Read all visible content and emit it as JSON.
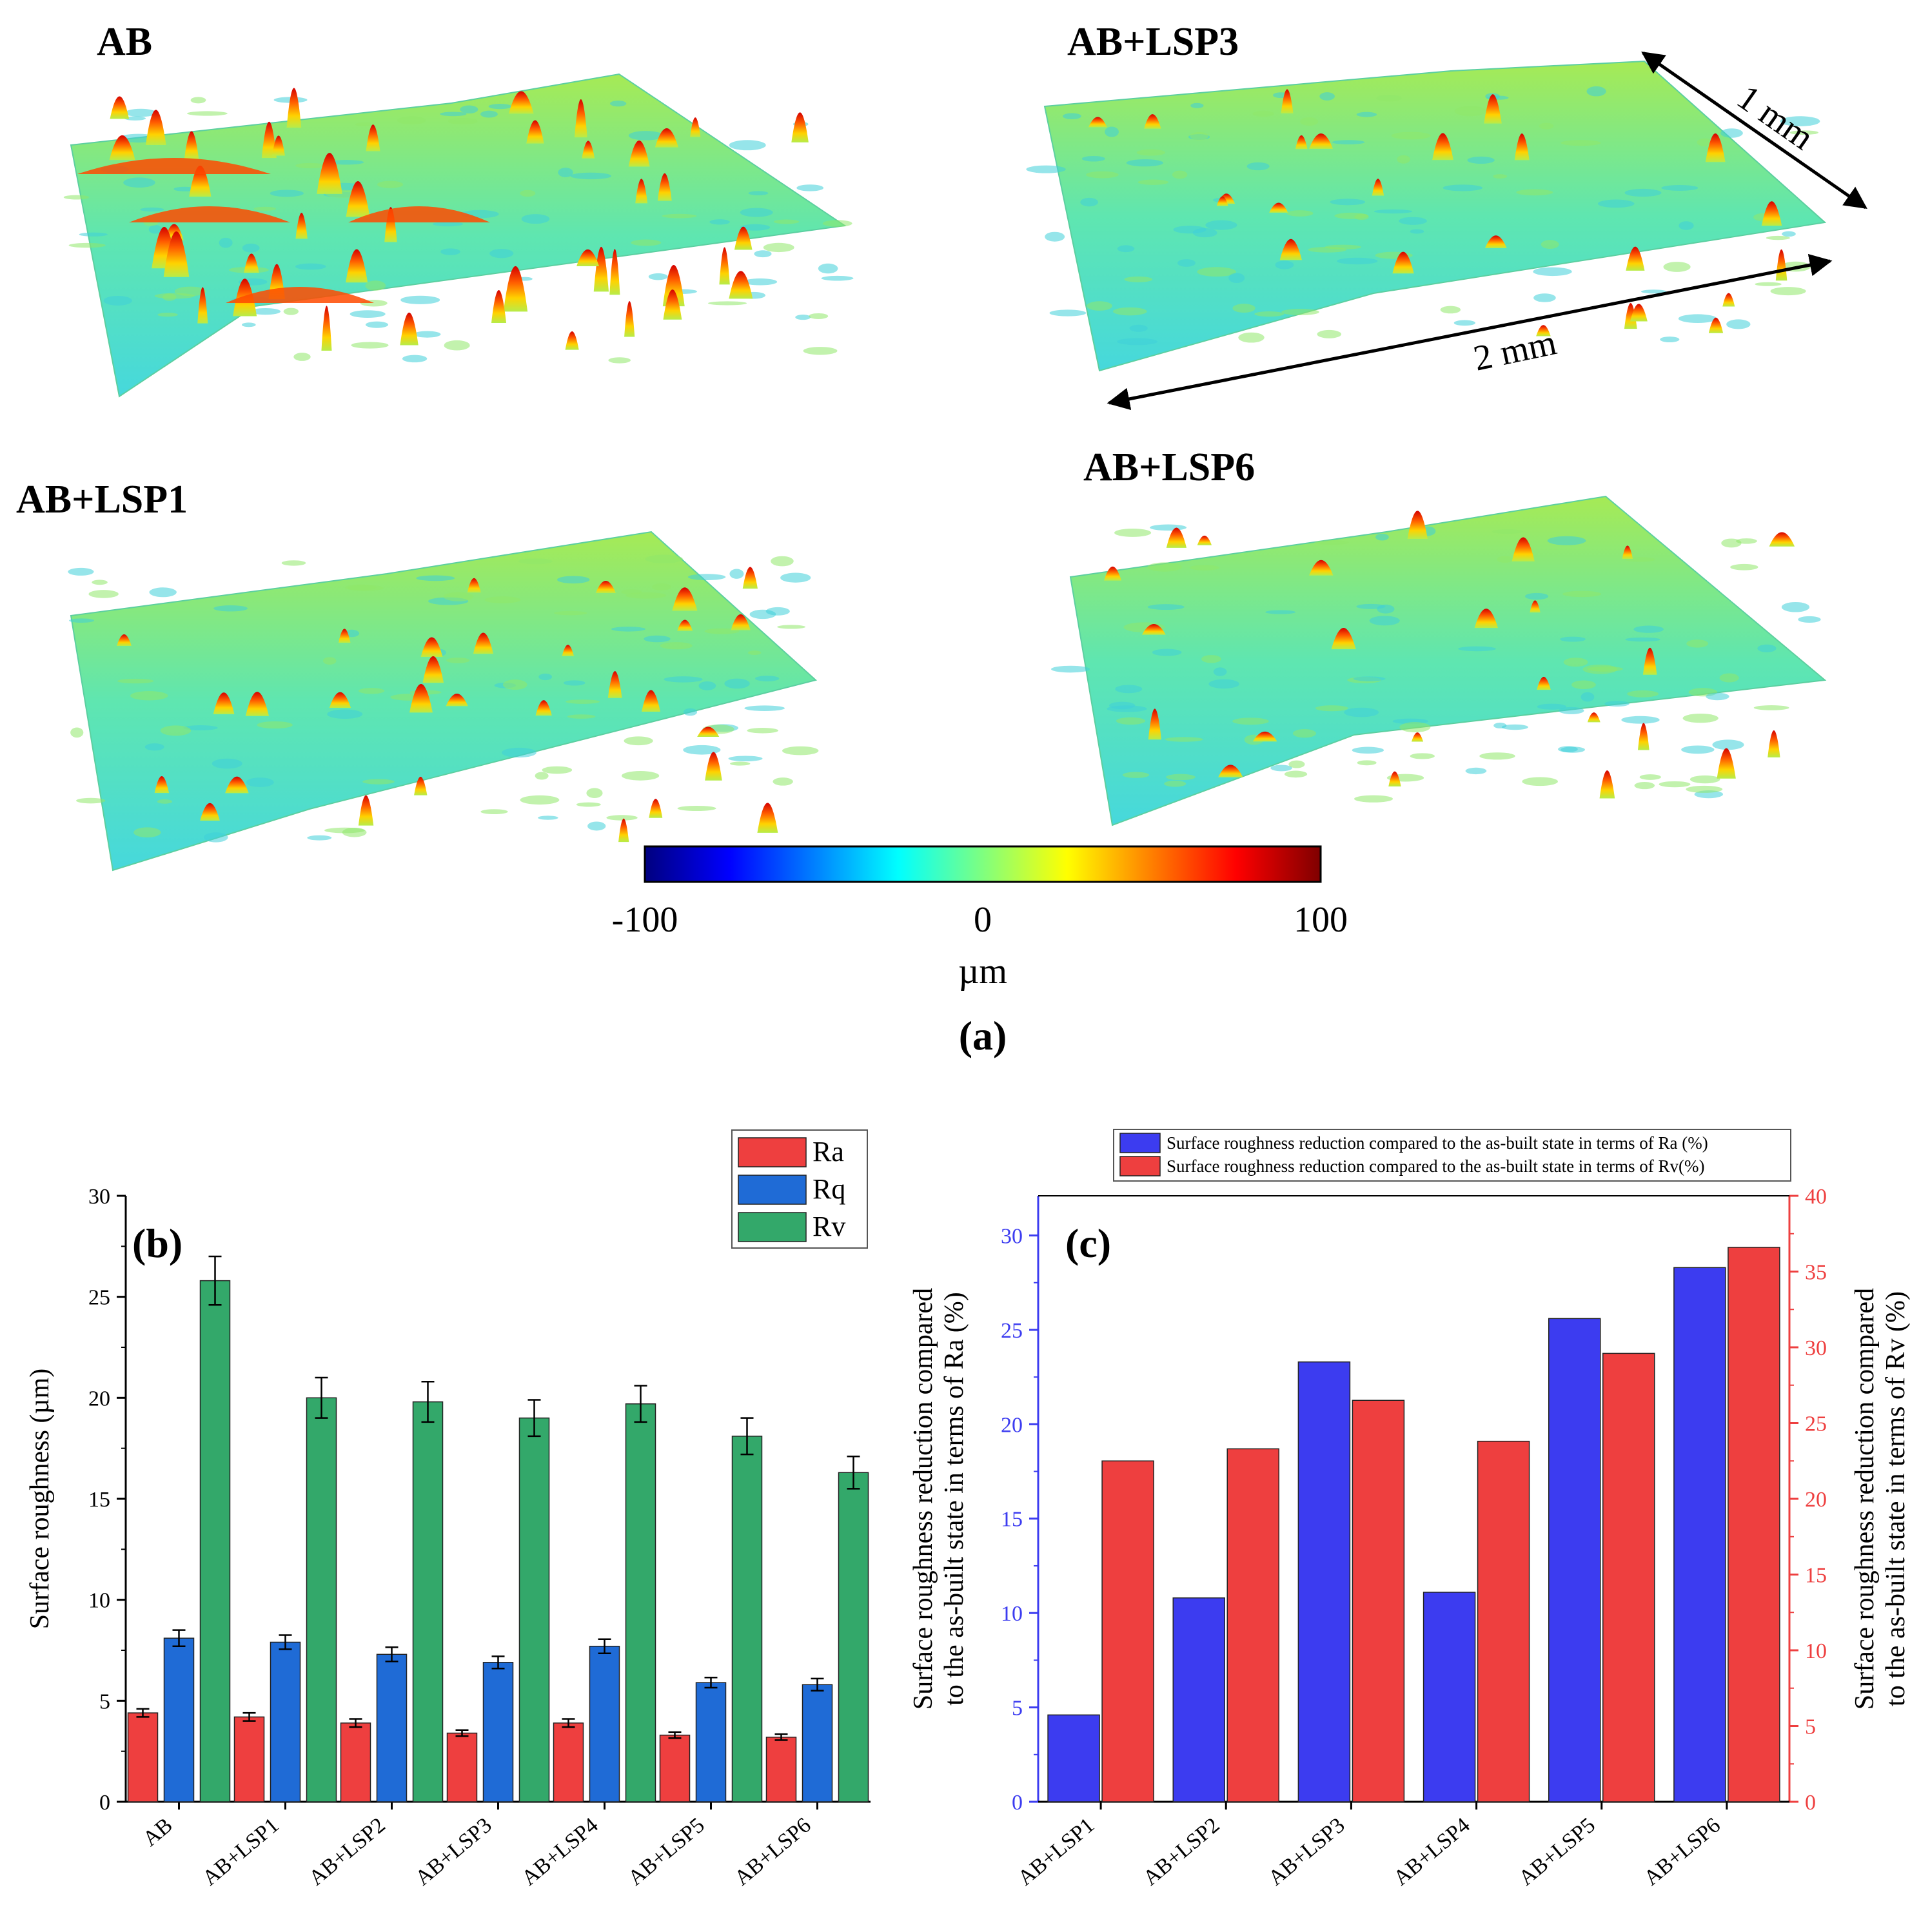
{
  "panel_a": {
    "label": "(a)",
    "surfaces": [
      {
        "title": "AB",
        "roughness": "high"
      },
      {
        "title": "AB+LSP3",
        "roughness": "low"
      },
      {
        "title": "AB+LSP1",
        "roughness": "medium"
      },
      {
        "title": "AB+LSP6",
        "roughness": "low"
      }
    ],
    "dimension_labels": {
      "length": "2 mm",
      "width": "1 mm"
    },
    "colorbar": {
      "min_label": "-100",
      "mid_label": "0",
      "max_label": "100",
      "unit": "µm",
      "colors": [
        "#00007f",
        "#0000ff",
        "#007fff",
        "#00ffff",
        "#7fff7f",
        "#ffff00",
        "#ff7f00",
        "#ff0000",
        "#7f0000"
      ]
    }
  },
  "chart_data": [
    {
      "id": "b",
      "label": "(b)",
      "type": "bar",
      "categories": [
        "AB",
        "AB+LSP1",
        "AB+LSP2",
        "AB+LSP3",
        "AB+LSP4",
        "AB+LSP5",
        "AB+LSP6"
      ],
      "series": [
        {
          "name": "Ra",
          "color": "#ee3f3f",
          "values": [
            4.4,
            4.2,
            3.9,
            3.4,
            3.9,
            3.3,
            3.2
          ],
          "errors": [
            0.2,
            0.2,
            0.2,
            0.15,
            0.2,
            0.15,
            0.15
          ]
        },
        {
          "name": "Rq",
          "color": "#1f6bd6",
          "values": [
            8.1,
            7.9,
            7.3,
            6.9,
            7.7,
            5.9,
            5.8
          ],
          "errors": [
            0.4,
            0.35,
            0.35,
            0.3,
            0.35,
            0.25,
            0.3
          ]
        },
        {
          "name": "Rv",
          "color": "#33a86a",
          "values": [
            25.8,
            20.0,
            19.8,
            19.0,
            19.7,
            18.1,
            16.3
          ],
          "errors": [
            1.2,
            1.0,
            1.0,
            0.9,
            0.9,
            0.9,
            0.8
          ]
        }
      ],
      "ylabel": "Surface roughness (µm)",
      "xlabel": "",
      "ylim": [
        0,
        30
      ],
      "yticks": [
        "0",
        "5",
        "10",
        "15",
        "20",
        "25",
        "30"
      ],
      "legend": "top-right"
    },
    {
      "id": "c",
      "label": "(c)",
      "type": "bar",
      "categories": [
        "AB+LSP1",
        "AB+LSP2",
        "AB+LSP3",
        "AB+LSP4",
        "AB+LSP5",
        "AB+LSP6"
      ],
      "series": [
        {
          "name": "Surface roughness reduction compared to the as-built state in terms of Ra (%)",
          "axis": "left",
          "color": "#3c3cf0",
          "values": [
            4.6,
            10.8,
            23.3,
            11.1,
            25.6,
            28.3
          ]
        },
        {
          "name": "Surface roughness reduction compared to the as-built state in terms of Rv(%)",
          "axis": "right",
          "color": "#ee3f3f",
          "values": [
            22.5,
            23.3,
            26.5,
            23.8,
            29.6,
            36.6
          ]
        }
      ],
      "ylabel_left": "Surface roughness reduction compared to the as-built state in terms of Ra (%)",
      "ylabel_left_lines": [
        "Surface roughness reduction compared",
        "to the as-built state in terms of Ra (%)"
      ],
      "ylabel_right_lines": [
        "Surface roughness reduction compared",
        "to the as-built state in terms of Rv (%)"
      ],
      "ylim_left": [
        0,
        32.1
      ],
      "ylim_right": [
        0,
        40
      ],
      "yticks_left": [
        "0",
        "5",
        "10",
        "15",
        "20",
        "25",
        "30"
      ],
      "yticks_right": [
        "0",
        "5",
        "10",
        "15",
        "20",
        "25",
        "30",
        "35",
        "40"
      ],
      "left_axis_color": "#3c3cf0",
      "right_axis_color": "#ee3f3f",
      "legend": "top"
    }
  ]
}
